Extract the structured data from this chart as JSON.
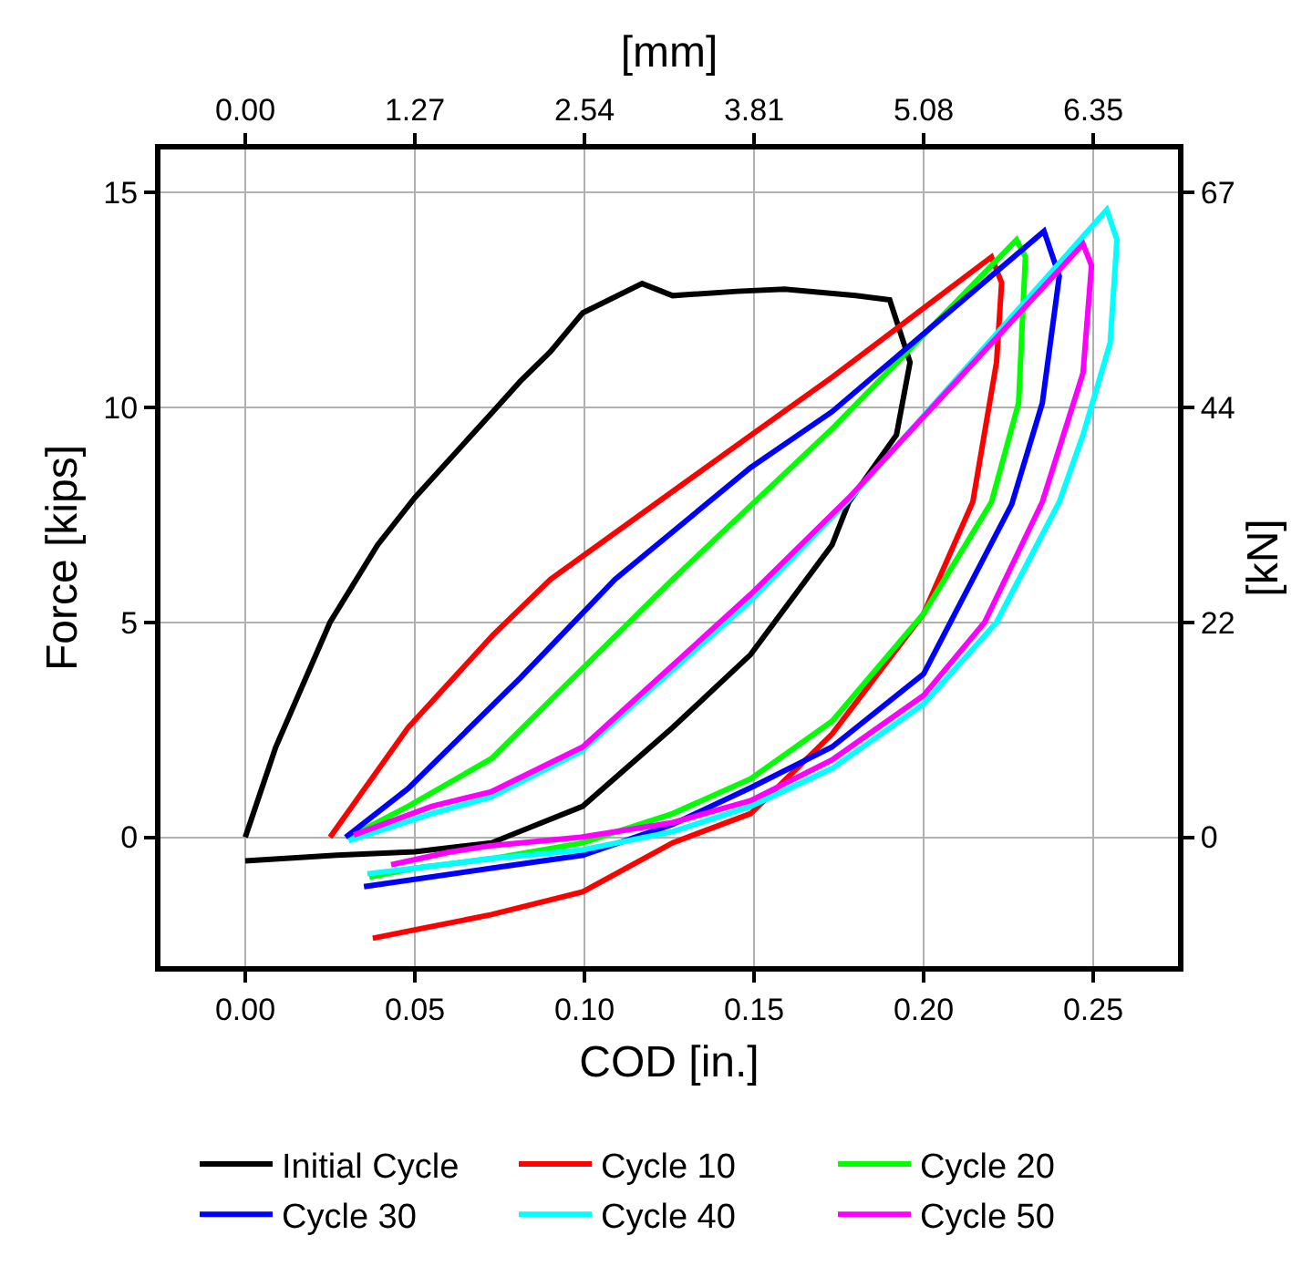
{
  "chart_data": {
    "type": "line",
    "xlabel": "COD [in.]",
    "ylabel": "Force [kips]",
    "y2label": "[kN]",
    "x2label": "[mm]",
    "xlim": [
      -0.025,
      0.275
    ],
    "xticks": [
      {
        "value": 0,
        "label": "0.00"
      },
      {
        "value": 0.05,
        "label": "0.05"
      },
      {
        "value": 0.1,
        "label": "0.10"
      },
      {
        "value": 0.15,
        "label": "0.15"
      },
      {
        "value": 0.2,
        "label": "0.20"
      },
      {
        "value": 0.25,
        "label": "0.25"
      }
    ],
    "ylim": [
      -3,
      16
    ],
    "yticks": [
      0,
      5,
      10,
      15
    ],
    "x2lim": [
      -0.635,
      6.985
    ],
    "x2ticks": [
      {
        "value": 0,
        "label": "0.00"
      },
      1.27,
      2.54,
      3.81,
      5.08,
      6.35
    ],
    "y2lim": [
      -13.34,
      71.17
    ],
    "y2ticks": [
      0,
      {
        "value": 22.24,
        "label": "22"
      },
      {
        "value": 44.48,
        "label": "44"
      },
      {
        "value": 66.72,
        "label": "67"
      }
    ],
    "grid": true,
    "legend": "bottom",
    "marker": "none",
    "line_style": "solid",
    "series": [
      {
        "name": "Initial Cycle",
        "color": "#000000",
        "x": [
          0,
          0.009,
          0.025,
          0.039,
          0.05,
          0.073,
          0.081,
          0.09,
          0.0995,
          0.117,
          0.126,
          0.145,
          0.159,
          0.18,
          0.19,
          0.196,
          0.192,
          0.178,
          0.173,
          0.149,
          0.126,
          0.0995,
          0.0726,
          0.05,
          0.027,
          0
        ],
        "values": [
          0,
          2.1,
          5.0,
          6.8,
          7.9,
          9.9,
          10.6,
          11.3,
          12.2,
          12.88,
          12.6,
          12.7,
          12.75,
          12.6,
          12.5,
          11.05,
          9.36,
          7.8,
          6.8,
          4.25,
          2.55,
          0.72,
          -0.13,
          -0.34,
          -0.42,
          -0.55
        ]
      },
      {
        "name": "Cycle 10",
        "color": "#ff0000",
        "x": [
          0.025,
          0.048,
          0.073,
          0.09,
          0.149,
          0.173,
          0.22,
          0.223,
          0.2215,
          0.2145,
          0.2,
          0.173,
          0.149,
          0.126,
          0.0995,
          0.0726,
          0.0376
        ],
        "values": [
          0,
          2.55,
          4.7,
          6.0,
          9.35,
          10.7,
          13.5,
          12.9,
          11.05,
          7.8,
          5.2,
          2.4,
          0.55,
          -0.13,
          -1.27,
          -1.8,
          -2.35
        ]
      },
      {
        "name": "Cycle 20",
        "color": "#00ff00",
        "x": [
          0.0306,
          0.048,
          0.0726,
          0.126,
          0.173,
          0.2274,
          0.23,
          0.228,
          0.22,
          0.2,
          0.173,
          0.149,
          0.126,
          0.0995,
          0.0726,
          0.05,
          0.0366
        ],
        "values": [
          0,
          0.72,
          1.83,
          6.0,
          9.5,
          13.9,
          13.5,
          10.1,
          7.8,
          5.2,
          2.7,
          1.36,
          0.55,
          -0.13,
          -0.5,
          -0.72,
          -0.93
        ]
      },
      {
        "name": "Cycle 30",
        "color": "#0000ff",
        "x": [
          0.0296,
          0.048,
          0.081,
          0.109,
          0.149,
          0.173,
          0.2355,
          0.24,
          0.235,
          0.226,
          0.2,
          0.173,
          0.149,
          0.126,
          0.0995,
          0.0726,
          0.035
        ],
        "values": [
          0,
          1.13,
          3.7,
          6.0,
          8.6,
          9.9,
          14.1,
          13.05,
          10.1,
          7.75,
          3.8,
          2.1,
          1.15,
          0.3,
          -0.42,
          -0.72,
          -1.15
        ]
      },
      {
        "name": "Cycle 40",
        "color": "#00ffff",
        "x": [
          0.0305,
          0.055,
          0.0723,
          0.099,
          0.149,
          0.178,
          0.254,
          0.257,
          0.255,
          0.247,
          0.24,
          0.2215,
          0.2,
          0.173,
          0.149,
          0.126,
          0.099,
          0.072,
          0.05,
          0.036
        ],
        "values": [
          -0.08,
          0.55,
          0.93,
          2.0,
          5.5,
          7.85,
          14.6,
          13.9,
          11.5,
          9.36,
          7.8,
          5.0,
          3.1,
          1.6,
          0.72,
          0.13,
          -0.3,
          -0.5,
          -0.72,
          -0.85
        ]
      },
      {
        "name": "Cycle 50",
        "color": "#ff00ff",
        "x": [
          0.032,
          0.055,
          0.0726,
          0.0995,
          0.149,
          0.178,
          0.247,
          0.2495,
          0.247,
          0.235,
          0.218,
          0.2,
          0.173,
          0.149,
          0.126,
          0.099,
          0.072,
          0.06,
          0.043
        ],
        "values": [
          0.05,
          0.72,
          1.06,
          2.1,
          5.65,
          7.9,
          13.8,
          13.3,
          10.8,
          7.8,
          5.0,
          3.3,
          1.8,
          0.85,
          0.34,
          0,
          -0.2,
          -0.35,
          -0.64
        ]
      }
    ]
  }
}
